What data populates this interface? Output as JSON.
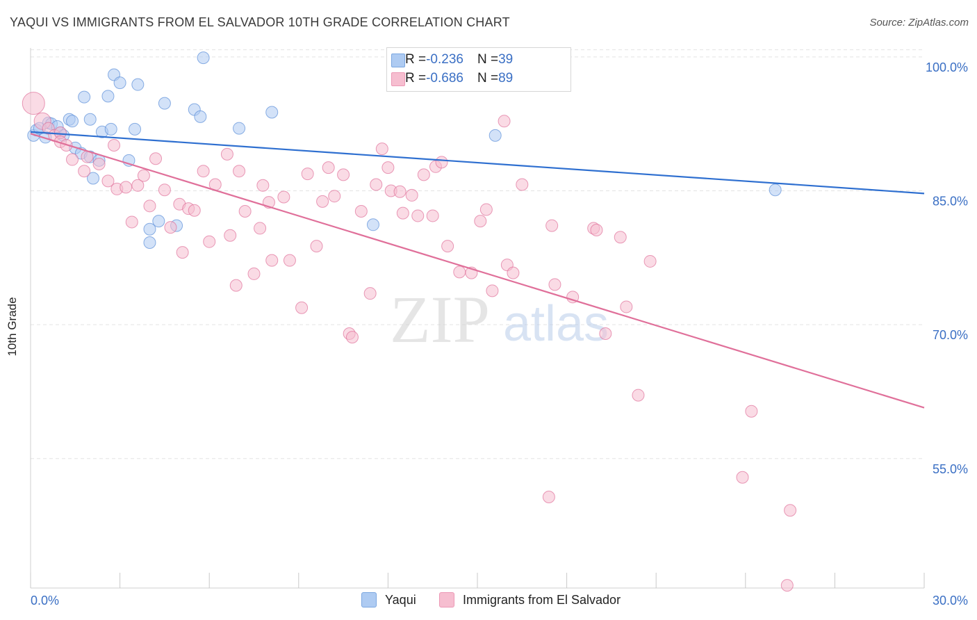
{
  "title": "YAQUI VS IMMIGRANTS FROM EL SALVADOR 10TH GRADE CORRELATION CHART",
  "source": "Source: ZipAtlas.com",
  "watermark": {
    "zip": "ZIP",
    "atlas": "atlas"
  },
  "legend_top": {
    "rows": [
      {
        "r_label": "R = ",
        "r_value": "-0.236",
        "n_label": "N = ",
        "n_value": "39",
        "color": "#aecbf2"
      },
      {
        "r_label": "R = ",
        "r_value": "-0.686",
        "n_label": "N = ",
        "n_value": "89",
        "color": "#f6bed0"
      }
    ]
  },
  "chart_data": {
    "type": "scatter",
    "title": "YAQUI VS IMMIGRANTS FROM EL SALVADOR 10TH GRADE CORRELATION CHART",
    "xlabel": "",
    "ylabel": "10th Grade",
    "xlim": [
      0,
      30
    ],
    "ylim": [
      40.5,
      101
    ],
    "x_tick_labels": [
      "0.0%",
      "30.0%"
    ],
    "y_ticks": [
      55,
      70,
      85,
      100
    ],
    "y_tick_labels": [
      "55.0%",
      "70.0%",
      "85.0%",
      "100.0%"
    ],
    "grid": true,
    "legend_position": "bottom",
    "series": [
      {
        "name": "Yaqui",
        "color": "#5b8fd9",
        "fill": "#aecbf2",
        "trend": {
          "x": [
            0,
            30
          ],
          "y": [
            91.6,
            84.7
          ]
        },
        "points": [
          [
            0.1,
            91.2
          ],
          [
            0.2,
            91.8
          ],
          [
            0.5,
            91.0
          ],
          [
            0.6,
            92.6
          ],
          [
            0.7,
            92.5
          ],
          [
            1.0,
            91.5
          ],
          [
            1.1,
            91.2
          ],
          [
            1.3,
            93.0
          ],
          [
            1.4,
            92.8
          ],
          [
            1.5,
            89.8
          ],
          [
            1.7,
            89.2
          ],
          [
            1.8,
            95.5
          ],
          [
            2.0,
            88.8
          ],
          [
            2.0,
            93.0
          ],
          [
            2.1,
            86.4
          ],
          [
            2.3,
            88.4
          ],
          [
            2.4,
            91.6
          ],
          [
            2.6,
            95.6
          ],
          [
            2.7,
            91.9
          ],
          [
            2.8,
            98.0
          ],
          [
            3.0,
            97.1
          ],
          [
            3.3,
            88.4
          ],
          [
            3.5,
            91.9
          ],
          [
            3.6,
            96.9
          ],
          [
            4.0,
            79.2
          ],
          [
            4.0,
            80.7
          ],
          [
            4.3,
            81.6
          ],
          [
            4.5,
            94.8
          ],
          [
            4.9,
            81.1
          ],
          [
            5.5,
            94.1
          ],
          [
            5.7,
            93.3
          ],
          [
            5.8,
            99.9
          ],
          [
            7.0,
            92.0
          ],
          [
            8.1,
            93.8
          ],
          [
            11.5,
            81.2
          ],
          [
            15.6,
            91.2
          ],
          [
            25.0,
            85.1
          ],
          [
            0.3,
            92.0
          ],
          [
            0.9,
            92.2
          ]
        ]
      },
      {
        "name": "Immigrants from El Salvador",
        "color": "#e0709a",
        "fill": "#f6bed0",
        "trend": {
          "x": [
            0,
            30
          ],
          "y": [
            91.4,
            60.7
          ]
        },
        "points": [
          [
            0.1,
            94.8
          ],
          [
            0.4,
            92.8
          ],
          [
            0.6,
            92.0
          ],
          [
            0.8,
            91.2
          ],
          [
            1.0,
            91.5
          ],
          [
            1.0,
            90.5
          ],
          [
            1.2,
            90.1
          ],
          [
            1.4,
            88.5
          ],
          [
            1.8,
            87.2
          ],
          [
            1.9,
            88.8
          ],
          [
            2.3,
            88.0
          ],
          [
            2.6,
            86.1
          ],
          [
            2.8,
            90.1
          ],
          [
            2.9,
            85.2
          ],
          [
            3.2,
            85.4
          ],
          [
            3.4,
            81.5
          ],
          [
            3.6,
            85.6
          ],
          [
            3.8,
            86.7
          ],
          [
            4.0,
            83.3
          ],
          [
            4.2,
            88.6
          ],
          [
            4.5,
            85.1
          ],
          [
            4.7,
            80.9
          ],
          [
            5.0,
            83.5
          ],
          [
            5.1,
            78.1
          ],
          [
            5.3,
            83.0
          ],
          [
            5.5,
            82.8
          ],
          [
            5.8,
            87.2
          ],
          [
            6.0,
            79.3
          ],
          [
            6.2,
            85.7
          ],
          [
            6.6,
            89.1
          ],
          [
            6.7,
            80.0
          ],
          [
            6.9,
            74.4
          ],
          [
            7.0,
            87.2
          ],
          [
            7.2,
            82.7
          ],
          [
            7.5,
            75.7
          ],
          [
            7.7,
            80.8
          ],
          [
            7.8,
            85.6
          ],
          [
            8.0,
            83.7
          ],
          [
            8.1,
            77.2
          ],
          [
            8.5,
            84.3
          ],
          [
            8.7,
            77.2
          ],
          [
            9.1,
            71.9
          ],
          [
            9.3,
            86.9
          ],
          [
            9.6,
            78.8
          ],
          [
            9.8,
            83.8
          ],
          [
            10.0,
            87.6
          ],
          [
            10.2,
            84.4
          ],
          [
            10.5,
            86.8
          ],
          [
            10.7,
            69.0
          ],
          [
            10.8,
            68.6
          ],
          [
            11.1,
            82.7
          ],
          [
            11.4,
            73.5
          ],
          [
            11.6,
            85.7
          ],
          [
            11.8,
            89.7
          ],
          [
            12.0,
            87.6
          ],
          [
            12.1,
            85.0
          ],
          [
            12.4,
            84.9
          ],
          [
            12.5,
            82.5
          ],
          [
            12.8,
            84.5
          ],
          [
            13.0,
            82.2
          ],
          [
            13.2,
            86.8
          ],
          [
            13.5,
            82.2
          ],
          [
            13.6,
            87.7
          ],
          [
            13.8,
            88.2
          ],
          [
            14.0,
            78.8
          ],
          [
            14.4,
            75.9
          ],
          [
            14.8,
            75.8
          ],
          [
            15.1,
            81.6
          ],
          [
            15.3,
            82.9
          ],
          [
            15.5,
            73.8
          ],
          [
            15.9,
            92.8
          ],
          [
            16.0,
            76.7
          ],
          [
            16.2,
            75.8
          ],
          [
            16.5,
            85.7
          ],
          [
            17.5,
            81.1
          ],
          [
            17.6,
            74.5
          ],
          [
            18.2,
            73.1
          ],
          [
            18.9,
            80.8
          ],
          [
            19.0,
            80.6
          ],
          [
            19.3,
            69.0
          ],
          [
            19.8,
            79.8
          ],
          [
            20.0,
            72.0
          ],
          [
            20.4,
            62.1
          ],
          [
            20.8,
            77.1
          ],
          [
            23.9,
            52.9
          ],
          [
            24.2,
            60.3
          ],
          [
            25.5,
            49.2
          ],
          [
            17.4,
            50.7
          ],
          [
            25.4,
            40.8
          ]
        ]
      }
    ]
  }
}
